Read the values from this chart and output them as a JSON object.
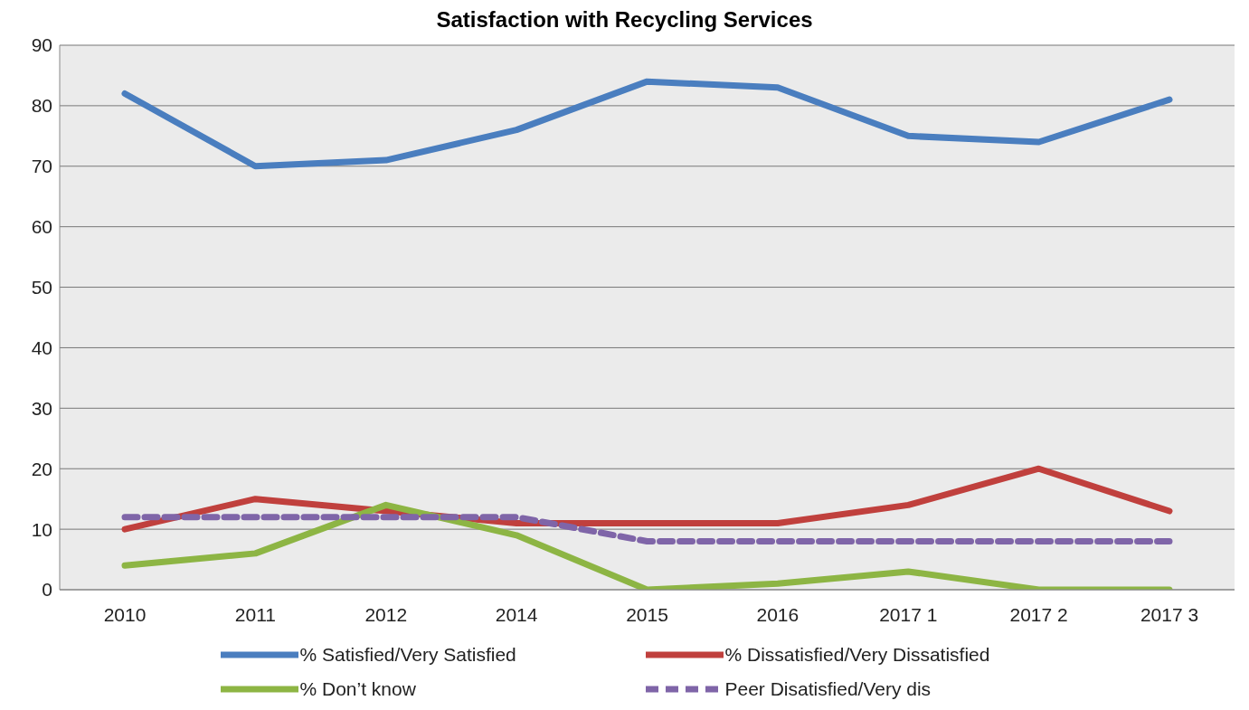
{
  "chart_data": {
    "type": "line",
    "title": "Satisfaction with Recycling Services",
    "categories": [
      "2010",
      "2011",
      "2012",
      "2014",
      "2015",
      "2016",
      "2017 1",
      "2017 2",
      "2017 3"
    ],
    "series": [
      {
        "name": "% Satisfied/Very Satisfied",
        "color": "#4a7ebf",
        "values": [
          82,
          70,
          71,
          76,
          84,
          83,
          75,
          74,
          81
        ]
      },
      {
        "name": "% Dissatisfied/Very Dissatisfied",
        "color": "#c0403d",
        "values": [
          10,
          15,
          13,
          11,
          11,
          11,
          14,
          20,
          13
        ]
      },
      {
        "name": "% Don’t know",
        "color": "#8db544",
        "values": [
          4,
          6,
          14,
          9,
          0,
          1,
          3,
          0,
          0
        ]
      },
      {
        "name": "Peer Disatisfied/Very dis",
        "color": "#7f65a8",
        "values": [
          12,
          12,
          12,
          12,
          8,
          8,
          8,
          8,
          8
        ],
        "line_style": "dashed"
      }
    ],
    "ylim": [
      0,
      90
    ],
    "yticks": [
      0,
      10,
      20,
      30,
      40,
      50,
      60,
      70,
      80,
      90
    ],
    "grid": "y",
    "legend": "bottom",
    "marker": "none"
  }
}
